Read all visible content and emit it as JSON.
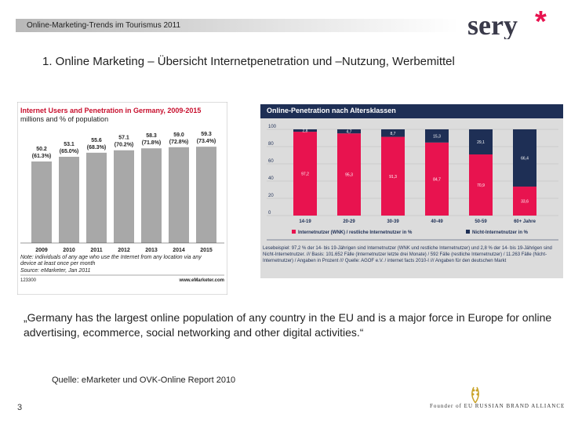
{
  "header": {
    "text": "Online-Marketing-Trends im Tourismus 2011"
  },
  "logo": {
    "text": "sery",
    "star": "*"
  },
  "title": "1. Online Marketing – Übersicht Internetpenetration und –Nutzung, Werbemittel",
  "quote": "„Germany has the largest online population of any country in the EU and is a major force in Europe for online advertising, ecommerce, social networking and other digital activities.“",
  "source": "Quelle: eMarketer und OVK-Online Report 2010",
  "page_number": "3",
  "footer": {
    "text": "Founder of EU RUSSIAN BRAND ALLIANCE"
  },
  "chart_data": [
    {
      "type": "bar",
      "title": "Internet Users and Penetration in Germany, 2009-2015",
      "subtitle": "millions and % of population",
      "categories": [
        "2009",
        "2010",
        "2011",
        "2012",
        "2013",
        "2014",
        "2015"
      ],
      "values": [
        50.2,
        53.1,
        55.6,
        57.1,
        58.3,
        59.0,
        59.3
      ],
      "value_labels": [
        "50.2",
        "53.1",
        "55.6",
        "57.1",
        "58.3",
        "59.0",
        "59.3"
      ],
      "percent_labels": [
        "(61.3%)",
        "(65.0%)",
        "(68.3%)",
        "(70.2%)",
        "(71.8%)",
        "(72.8%)",
        "(73.4%)"
      ],
      "ylim": [
        0,
        70
      ],
      "note": "Note: individuals of any age who use the Internet from any location via any device at least once per month",
      "source": "Source: eMarketer, Jan 2011",
      "id": "123300",
      "brand": "www.eMarketer.com",
      "colors": {
        "bar": "#a8a8a8",
        "title": "#c8102e"
      }
    },
    {
      "type": "bar",
      "title": "Online-Penetration nach Altersklassen",
      "categories": [
        "14-19",
        "20-29",
        "30-39",
        "40-49",
        "50-59",
        "60+ Jahre"
      ],
      "series": [
        {
          "name": "Internetnutzer (WNK) / restliche Internetnutzer in %",
          "values": [
            97.2,
            95.3,
            91.3,
            84.7,
            70.9,
            33.6
          ],
          "labels": [
            "97,2",
            "95,3",
            "91,3",
            "84,7",
            "70,9",
            "33,6"
          ],
          "color": "#e8134f"
        },
        {
          "name": "Nicht-Internetnutzer in %",
          "values": [
            2.8,
            4.7,
            8.7,
            15.3,
            29.1,
            66.4
          ],
          "labels": [
            "2,8",
            "4,7",
            "8,7",
            "15,3",
            "29,1",
            "66,4"
          ],
          "color": "#1e2f55"
        }
      ],
      "yticks": [
        "0",
        "20",
        "40",
        "60",
        "80",
        "100"
      ],
      "ylim": [
        0,
        100
      ],
      "stacked": true,
      "footnote": "Lesebeispiel: 97,2 % der 14- bis 19-Jährigen sind Internetnutzer (WNK und restliche Internetnutzer) und 2,8 % der 14- bis 19-Jährigen sind Nicht-Internetnutzer. /// Basis: 101.652 Fälle (Internetnutzer letzte drei Monate) / 592 Fälle (restliche Internetnutzer) / 11.263 Fälle (Nicht-Internetnutzer) / Angaben in Prozent /// Quelle: AGOF e.V. / internet facts 2010-I /// Angaben für den deutschen Markt"
    }
  ]
}
